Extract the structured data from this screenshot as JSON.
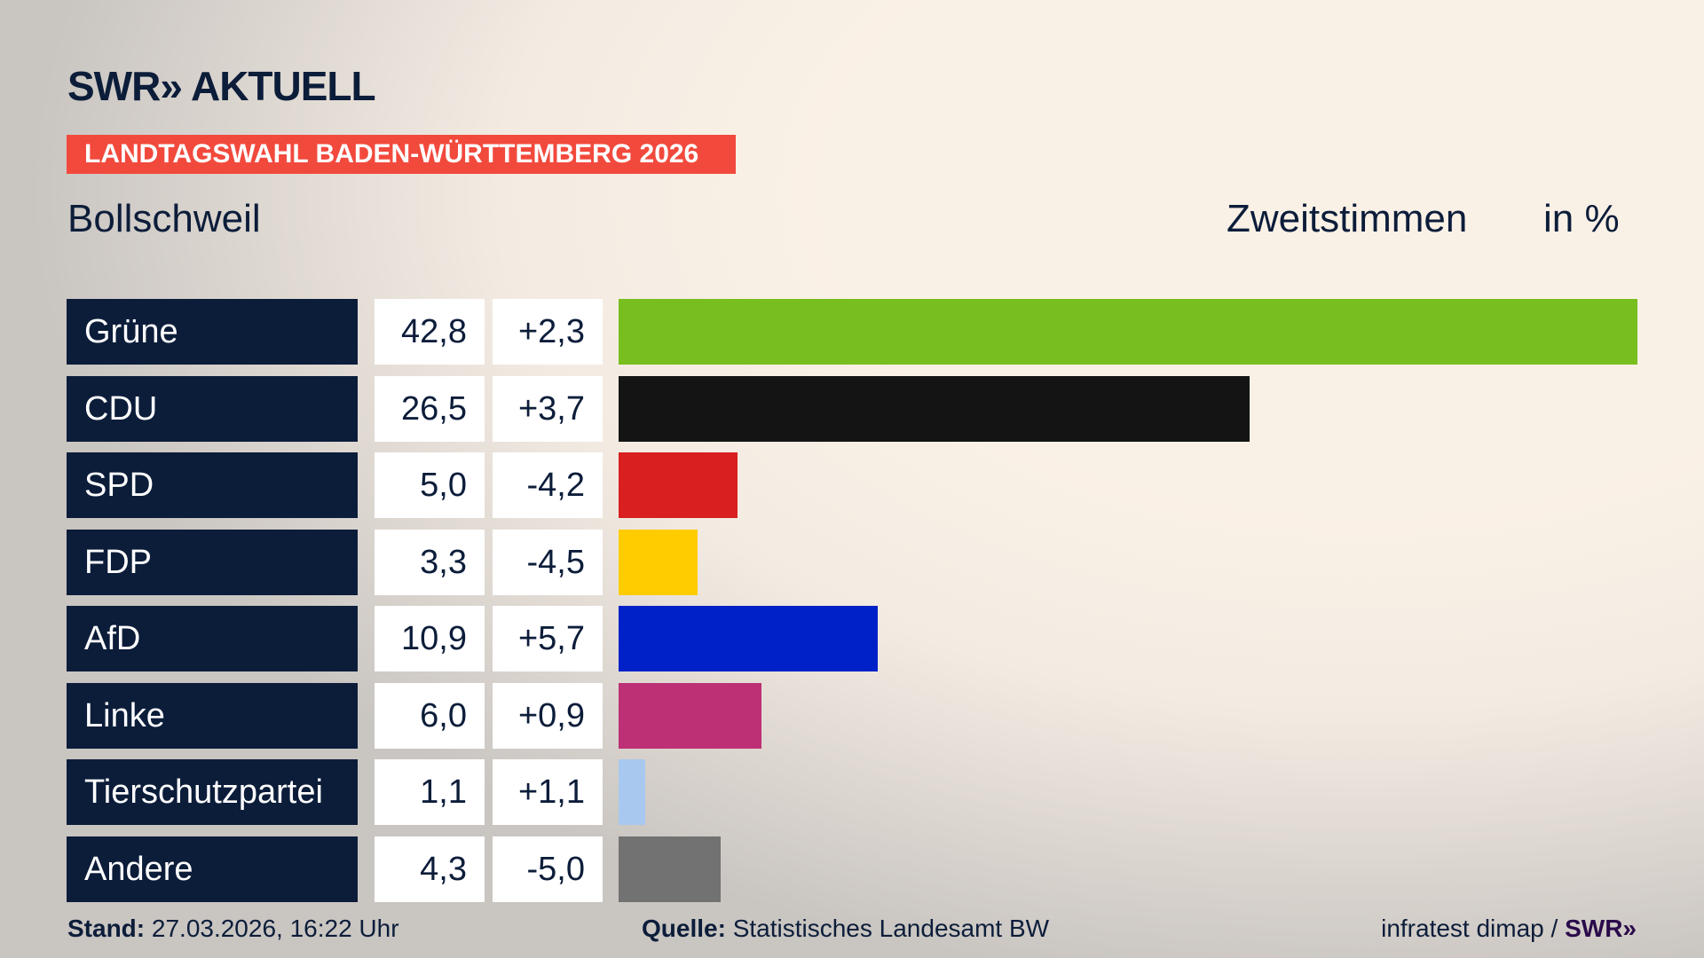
{
  "header": {
    "logo": "SWR» AKTUELL",
    "banner": "LANDTAGSWAHL BADEN-WÜRTTEMBERG 2026",
    "place": "Bollschweil",
    "metric": "Zweitstimmen",
    "unit": "in %"
  },
  "chart_data": {
    "type": "bar",
    "orientation": "horizontal",
    "categories": [
      "Grüne",
      "CDU",
      "SPD",
      "FDP",
      "AfD",
      "Linke",
      "Tierschutzpartei",
      "Andere"
    ],
    "values": [
      42.8,
      26.5,
      5.0,
      3.3,
      10.9,
      6.0,
      1.1,
      4.3
    ],
    "value_labels": [
      "42,8",
      "26,5",
      "5,0",
      "3,3",
      "10,9",
      "6,0",
      "1,1",
      "4,3"
    ],
    "change_labels": [
      "+2,3",
      "+3,7",
      "-4,2",
      "-4,5",
      "+5,7",
      "+0,9",
      "+1,1",
      "-5,0"
    ],
    "changes": [
      2.3,
      3.7,
      -4.2,
      -4.5,
      5.7,
      0.9,
      1.1,
      -5.0
    ],
    "colors": [
      "#78be1e",
      "#141414",
      "#d91f1f",
      "#ffcc00",
      "#0021c8",
      "#bd3075",
      "#a9c8f0",
      "#727272"
    ],
    "grid": false
  },
  "footer": {
    "stand_label": "Stand:",
    "stand_value": "27.03.2026, 16:22 Uhr",
    "source_label": "Quelle:",
    "source_value": "Statistisches Landesamt BW",
    "credit": "infratest dimap /",
    "credit_logo": "SWR»"
  }
}
